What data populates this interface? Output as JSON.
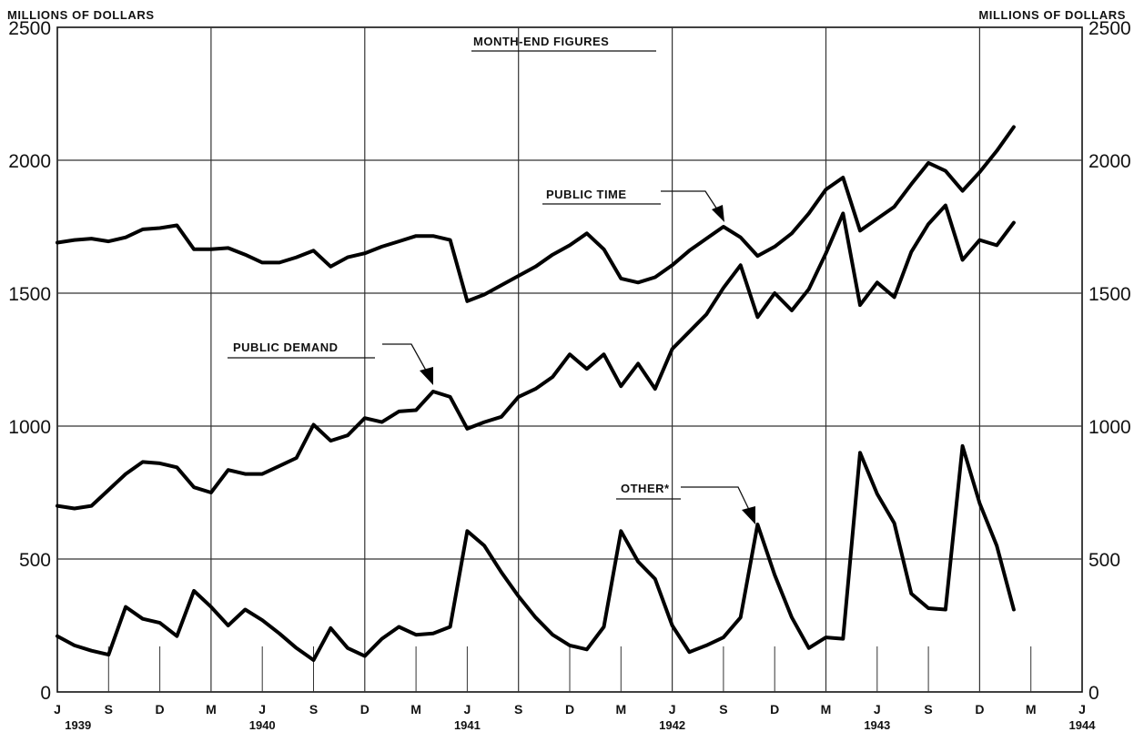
{
  "chart_data": {
    "type": "line",
    "title": "MONTH-END FIGURES",
    "ylabel_left": "MILLIONS OF DOLLARS",
    "ylabel_right": "MILLIONS OF DOLLARS",
    "ylim": [
      0,
      2500
    ],
    "yticks": [
      "0",
      "500",
      "1000",
      "1500",
      "2000",
      "2500"
    ],
    "xtick_labels": [
      "J",
      "S",
      "D",
      "M",
      "J",
      "S",
      "D",
      "M",
      "J",
      "S",
      "D",
      "M",
      "J",
      "S",
      "D",
      "M",
      "J",
      "S",
      "D",
      "M",
      "J"
    ],
    "years": [
      "1939",
      "1940",
      "1941",
      "1942",
      "1943",
      "1944"
    ],
    "x_start": "1939-06",
    "x_end": "1944-06",
    "grid": true,
    "series": [
      {
        "name": "PUBLIC TIME",
        "values": [
          1690,
          1700,
          1705,
          1695,
          1710,
          1740,
          1745,
          1755,
          1665,
          1665,
          1670,
          1645,
          1615,
          1615,
          1635,
          1660,
          1600,
          1635,
          1650,
          1675,
          1695,
          1715,
          1715,
          1700,
          1470,
          1495,
          1530,
          1565,
          1600,
          1645,
          1680,
          1725,
          1665,
          1555,
          1540,
          1560,
          1605,
          1660,
          1705,
          1750,
          1710,
          1640,
          1675,
          1725,
          1800,
          1890,
          1935,
          1735,
          1780,
          1825,
          1910,
          1990,
          1960,
          1885,
          1955,
          2035,
          2125
        ]
      },
      {
        "name": "PUBLIC DEMAND",
        "values": [
          700,
          690,
          700,
          760,
          820,
          865,
          860,
          845,
          770,
          750,
          835,
          820,
          820,
          850,
          880,
          1005,
          945,
          965,
          1030,
          1015,
          1055,
          1060,
          1130,
          1110,
          990,
          1015,
          1035,
          1110,
          1140,
          1185,
          1270,
          1215,
          1270,
          1150,
          1235,
          1140,
          1290,
          1355,
          1420,
          1520,
          1605,
          1410,
          1500,
          1435,
          1515,
          1650,
          1800,
          1455,
          1540,
          1485,
          1655,
          1760,
          1830,
          1625,
          1700,
          1680,
          1765
        ]
      },
      {
        "name": "OTHER*",
        "values": [
          210,
          175,
          155,
          140,
          320,
          275,
          260,
          210,
          380,
          320,
          250,
          310,
          270,
          220,
          165,
          120,
          240,
          165,
          135,
          200,
          245,
          215,
          220,
          245,
          605,
          550,
          450,
          360,
          280,
          215,
          175,
          160,
          245,
          605,
          490,
          425,
          250,
          150,
          175,
          205,
          280,
          630,
          440,
          280,
          165,
          205,
          200,
          900,
          745,
          635,
          370,
          315,
          310,
          925,
          710,
          550,
          310
        ]
      }
    ],
    "annotations": [
      "PUBLIC TIME",
      "PUBLIC DEMAND",
      "OTHER*"
    ]
  }
}
